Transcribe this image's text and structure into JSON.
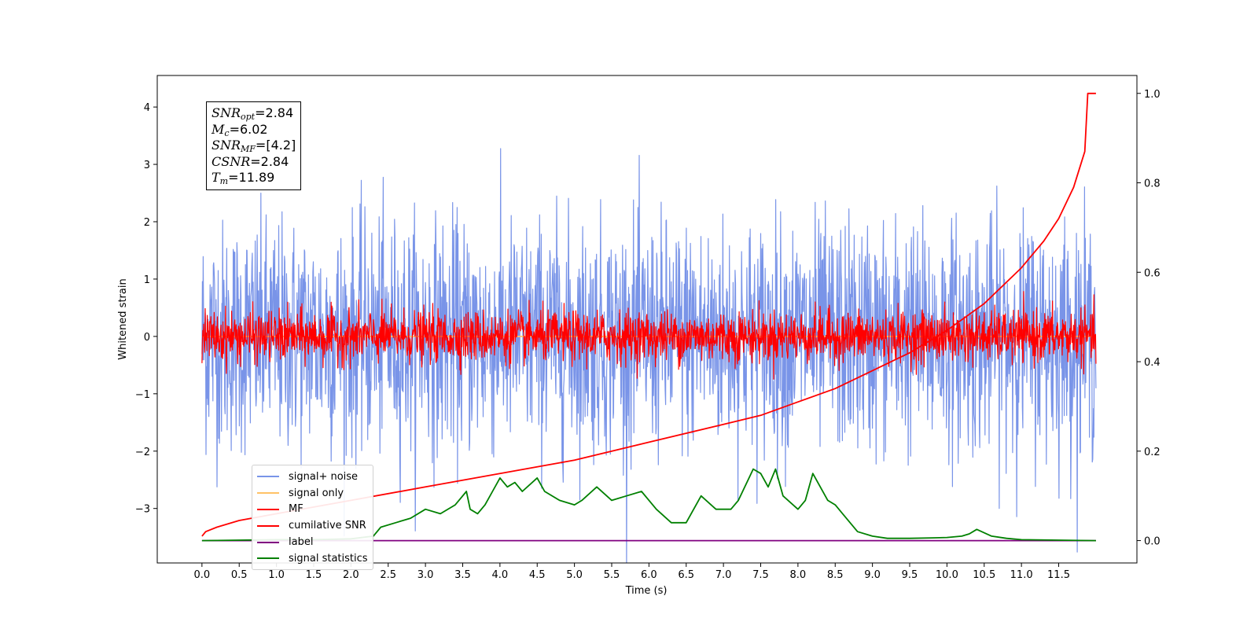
{
  "chart_data": {
    "type": "line",
    "title": "",
    "xlabel": "Time (s)",
    "ylabel": "Whitened strain",
    "xlim": [
      -0.6,
      12.55
    ],
    "ylim": [
      -3.95,
      4.55
    ],
    "y2lim": [
      -0.05,
      1.04
    ],
    "x_ticks": [
      "0.0",
      "0.5",
      "1.0",
      "1.5",
      "2.0",
      "2.5",
      "3.0",
      "3.5",
      "4.0",
      "4.5",
      "5.0",
      "5.5",
      "6.0",
      "6.5",
      "7.0",
      "7.5",
      "8.0",
      "8.5",
      "9.0",
      "9.5",
      "10.0",
      "10.5",
      "11.0",
      "11.5"
    ],
    "y_ticks": [
      "4",
      "3",
      "2",
      "1",
      "0",
      "−1",
      "−2",
      "−3"
    ],
    "y2_ticks": [
      "1.0",
      "0.8",
      "0.6",
      "0.4",
      "0.2",
      "0.0"
    ],
    "grid": false,
    "legend_position": "lower-left",
    "series": [
      {
        "name": "signal+ noise",
        "color": "#7994e8",
        "axis": "left",
        "style": "noise",
        "amplitude_std": 1.0,
        "x_range": [
          0.0,
          12.0
        ]
      },
      {
        "name": "signal only",
        "color": "#ffc266",
        "axis": "left",
        "style": "flat",
        "x_range": [
          0.0,
          12.0
        ]
      },
      {
        "name": "MF",
        "color": "#ff0000",
        "axis": "left",
        "style": "noise",
        "amplitude_std": 0.22,
        "x_range": [
          0.0,
          12.0
        ]
      },
      {
        "name": "cumilative SNR",
        "color": "#ff0000",
        "axis": "right",
        "x": [
          0.0,
          0.05,
          0.2,
          0.5,
          1.0,
          2.0,
          3.0,
          4.0,
          5.0,
          6.0,
          7.0,
          7.5,
          8.0,
          8.5,
          9.0,
          9.5,
          10.0,
          10.5,
          11.0,
          11.3,
          11.5,
          11.7,
          11.85,
          11.89,
          12.0
        ],
        "y": [
          0.01,
          0.02,
          0.03,
          0.045,
          0.06,
          0.09,
          0.12,
          0.15,
          0.18,
          0.22,
          0.26,
          0.28,
          0.31,
          0.34,
          0.38,
          0.42,
          0.47,
          0.53,
          0.61,
          0.67,
          0.72,
          0.79,
          0.87,
          1.0,
          1.0
        ]
      },
      {
        "name": "label",
        "color": "#800080",
        "axis": "right",
        "x": [
          0.0,
          12.0
        ],
        "y": [
          0.0,
          0.0
        ]
      },
      {
        "name": "signal statistics",
        "color": "#008000",
        "axis": "right",
        "x": [
          0.0,
          0.5,
          1.0,
          1.5,
          2.0,
          2.3,
          2.4,
          2.6,
          2.8,
          3.0,
          3.2,
          3.4,
          3.55,
          3.6,
          3.7,
          3.8,
          3.9,
          4.0,
          4.1,
          4.2,
          4.3,
          4.5,
          4.6,
          4.8,
          5.0,
          5.1,
          5.3,
          5.5,
          5.7,
          5.9,
          6.1,
          6.3,
          6.5,
          6.7,
          6.9,
          7.1,
          7.2,
          7.4,
          7.5,
          7.6,
          7.7,
          7.8,
          8.0,
          8.1,
          8.2,
          8.3,
          8.4,
          8.5,
          8.6,
          8.8,
          9.0,
          9.2,
          9.5,
          9.8,
          10.0,
          10.2,
          10.3,
          10.4,
          10.6,
          10.8,
          11.0,
          11.5,
          12.0
        ],
        "y": [
          0.0,
          0.001,
          0.002,
          0.002,
          0.004,
          0.01,
          0.03,
          0.04,
          0.05,
          0.07,
          0.06,
          0.08,
          0.11,
          0.07,
          0.06,
          0.08,
          0.11,
          0.14,
          0.12,
          0.13,
          0.11,
          0.14,
          0.11,
          0.09,
          0.08,
          0.09,
          0.12,
          0.09,
          0.1,
          0.11,
          0.07,
          0.04,
          0.04,
          0.1,
          0.07,
          0.07,
          0.09,
          0.16,
          0.15,
          0.12,
          0.16,
          0.1,
          0.07,
          0.09,
          0.15,
          0.12,
          0.09,
          0.08,
          0.06,
          0.02,
          0.01,
          0.005,
          0.005,
          0.006,
          0.007,
          0.01,
          0.015,
          0.025,
          0.01,
          0.005,
          0.002,
          0.001,
          0.0
        ]
      }
    ]
  },
  "info_box": {
    "snr_opt_var": "SNR",
    "snr_opt_sub": "opt",
    "snr_opt_value": "=2.84",
    "mc_var": "M",
    "mc_sub": "c",
    "mc_value": "=6.02",
    "snr_mf_var": "SNR",
    "snr_mf_sub": "MF",
    "snr_mf_value": "=[4.2]",
    "csnr_var": "CSNR",
    "csnr_value": "=2.84",
    "tm_var": "T",
    "tm_sub": "m",
    "tm_value": "=11.89"
  }
}
